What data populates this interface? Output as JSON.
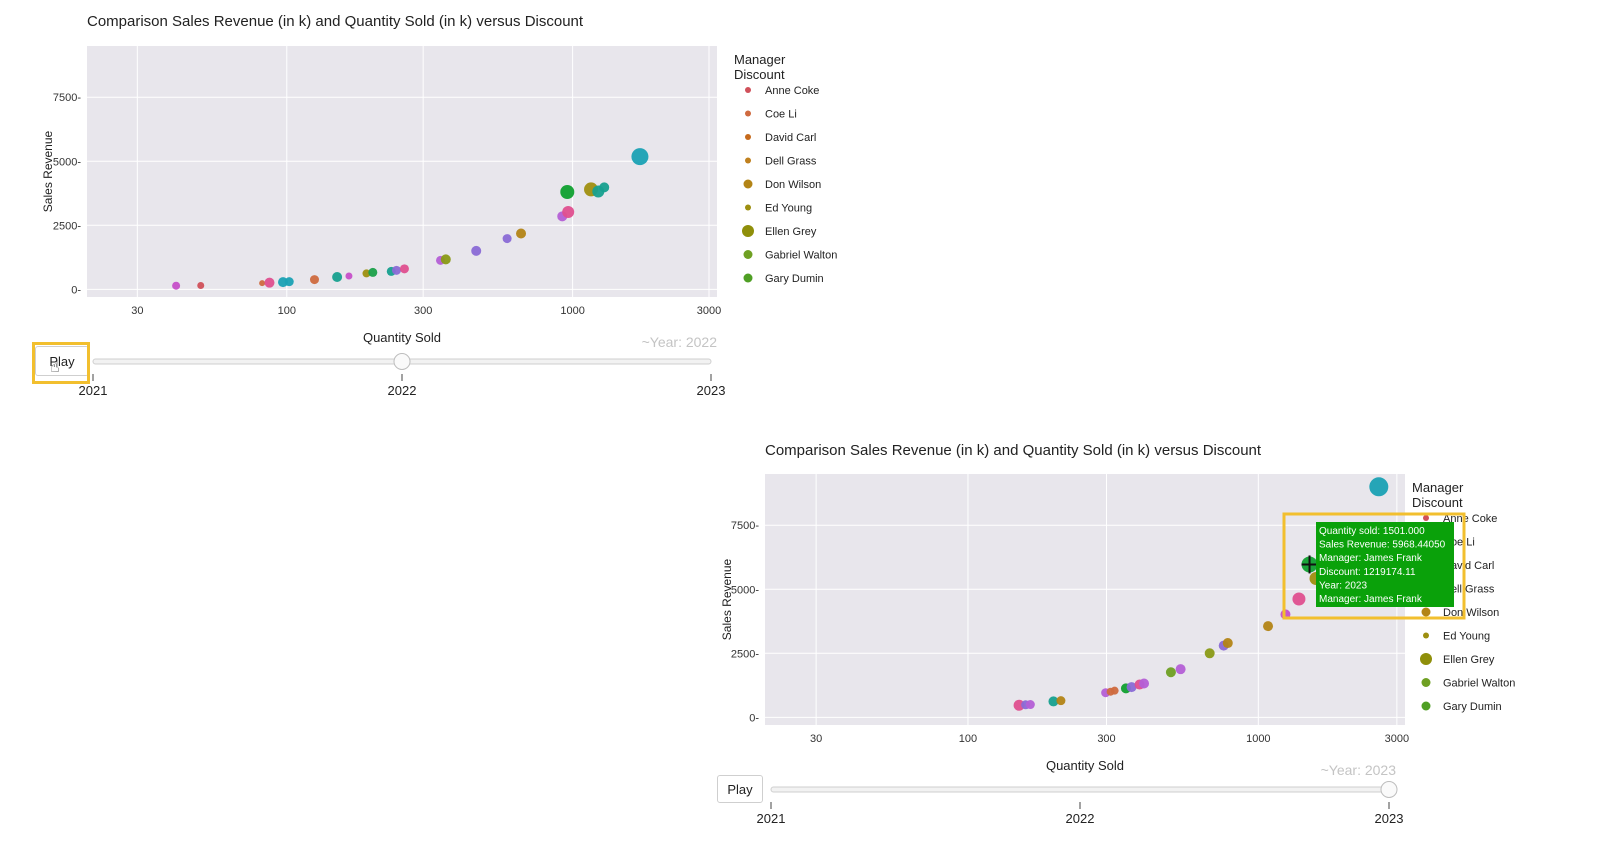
{
  "chart_data": [
    {
      "type": "scatter",
      "title": "Comparison Sales Revenue (in k) and Quantity Sold (in k) versus Discount",
      "xlabel": "Quantity Sold",
      "ylabel": "Sales Revenue",
      "x_scale": "log",
      "xlim": [
        20,
        3200
      ],
      "ylim": [
        -300,
        9500
      ],
      "x_ticks": [
        "30",
        "100",
        "300",
        "1000",
        "3000"
      ],
      "x_tick_values": [
        30,
        100,
        300,
        1000,
        3000
      ],
      "y_ticks": [
        "0",
        "2500",
        "5000",
        "7500"
      ],
      "y_tick_values": [
        0,
        2500,
        5000,
        7500
      ],
      "grid": true,
      "legend_title": "Manager\nDiscount",
      "legend_placement": "right",
      "legend": [
        {
          "name": "Anne Coke",
          "color": "#d0505a",
          "size": "small"
        },
        {
          "name": "Coe Li",
          "color": "#cf6a3f",
          "size": "small"
        },
        {
          "name": "David Carl",
          "color": "#c66a1c",
          "size": "small"
        },
        {
          "name": "Dell Grass",
          "color": "#c0801e",
          "size": "small"
        },
        {
          "name": "Don Wilson",
          "color": "#b38416",
          "size": "medium"
        },
        {
          "name": "Ed Young",
          "color": "#9d8f10",
          "size": "small"
        },
        {
          "name": "Ellen Grey",
          "color": "#8f8f0a",
          "size": "large"
        },
        {
          "name": "Gabriel Walton",
          "color": "#6fa023",
          "size": "medium"
        },
        {
          "name": "Gary Dumin",
          "color": "#4f9f24",
          "size": "medium"
        }
      ],
      "points": [
        {
          "x": 41,
          "y": 140,
          "color": "#c64fc9",
          "r": 4
        },
        {
          "x": 50,
          "y": 150,
          "color": "#d0505a",
          "r": 3.5
        },
        {
          "x": 82,
          "y": 240,
          "color": "#cf6a3f",
          "r": 3
        },
        {
          "x": 87,
          "y": 260,
          "color": "#df4f8f",
          "r": 5
        },
        {
          "x": 97,
          "y": 280,
          "color": "#1aa1b4",
          "r": 5
        },
        {
          "x": 102,
          "y": 300,
          "color": "#1aa1b4",
          "r": 4.5
        },
        {
          "x": 125,
          "y": 380,
          "color": "#cf6a3f",
          "r": 4.5
        },
        {
          "x": 150,
          "y": 480,
          "color": "#17a08f",
          "r": 5
        },
        {
          "x": 165,
          "y": 520,
          "color": "#c64fc9",
          "r": 3.5
        },
        {
          "x": 190,
          "y": 620,
          "color": "#9d8f10",
          "r": 4
        },
        {
          "x": 200,
          "y": 660,
          "color": "#1ba04a",
          "r": 4.5
        },
        {
          "x": 232,
          "y": 700,
          "color": "#17a08f",
          "r": 4.5
        },
        {
          "x": 242,
          "y": 740,
          "color": "#8a6ad6",
          "r": 4.5
        },
        {
          "x": 258,
          "y": 800,
          "color": "#df4f8f",
          "r": 4.5
        },
        {
          "x": 345,
          "y": 1130,
          "color": "#b45fd6",
          "r": 4.5
        },
        {
          "x": 360,
          "y": 1170,
          "color": "#8a9a16",
          "r": 5
        },
        {
          "x": 460,
          "y": 1500,
          "color": "#8a6ad6",
          "r": 5
        },
        {
          "x": 590,
          "y": 1980,
          "color": "#8a6ad6",
          "r": 4.5
        },
        {
          "x": 660,
          "y": 2180,
          "color": "#b38416",
          "r": 5
        },
        {
          "x": 920,
          "y": 2850,
          "color": "#b45fd6",
          "r": 5
        },
        {
          "x": 965,
          "y": 3020,
          "color": "#df4f8f",
          "r": 6
        },
        {
          "x": 958,
          "y": 3800,
          "color": "#10a030",
          "r": 7
        },
        {
          "x": 1160,
          "y": 3900,
          "color": "#a08f10",
          "r": 7
        },
        {
          "x": 1230,
          "y": 3820,
          "color": "#17a08f",
          "r": 6
        },
        {
          "x": 1290,
          "y": 3980,
          "color": "#17a08f",
          "r": 5
        },
        {
          "x": 1720,
          "y": 5180,
          "color": "#1aa1b4",
          "r": 8.5
        }
      ],
      "slider": {
        "labels": [
          "2021",
          "2022",
          "2023"
        ],
        "current_label": "~Year: 2022",
        "position": 0.5
      },
      "play_label": "Play"
    },
    {
      "type": "scatter",
      "title": "Comparison Sales Revenue (in k) and Quantity Sold (in k) versus Discount",
      "xlabel": "Quantity Sold",
      "ylabel": "Sales Revenue",
      "x_scale": "log",
      "xlim": [
        20,
        3200
      ],
      "ylim": [
        -300,
        9500
      ],
      "x_ticks": [
        "30",
        "100",
        "300",
        "1000",
        "3000"
      ],
      "x_tick_values": [
        30,
        100,
        300,
        1000,
        3000
      ],
      "y_ticks": [
        "0",
        "2500",
        "5000",
        "7500"
      ],
      "y_tick_values": [
        0,
        2500,
        5000,
        7500
      ],
      "grid": true,
      "legend_title": "Manager\nDiscount",
      "legend_placement": "right",
      "legend": [
        {
          "name": "Anne Coke",
          "color": "#d0505a",
          "size": "small"
        },
        {
          "name": "Coe Li",
          "color": "#cf6a3f",
          "size": "small"
        },
        {
          "name": "David Carl",
          "color": "#c66a1c",
          "size": "small"
        },
        {
          "name": "Dell Grass",
          "color": "#c0801e",
          "size": "small"
        },
        {
          "name": "Don Wilson",
          "color": "#b38416",
          "size": "medium"
        },
        {
          "name": "Ed Young",
          "color": "#9d8f10",
          "size": "small"
        },
        {
          "name": "Ellen Grey",
          "color": "#8f8f0a",
          "size": "large"
        },
        {
          "name": "Gabriel Walton",
          "color": "#6fa023",
          "size": "medium"
        },
        {
          "name": "Gary Dumin",
          "color": "#4f9f24",
          "size": "medium"
        }
      ],
      "points": [
        {
          "x": 150,
          "y": 470,
          "color": "#df4f8f",
          "r": 5.5
        },
        {
          "x": 158,
          "y": 490,
          "color": "#8a6ad6",
          "r": 4.5
        },
        {
          "x": 164,
          "y": 500,
          "color": "#b45fd6",
          "r": 4.5
        },
        {
          "x": 197,
          "y": 620,
          "color": "#17a08f",
          "r": 5
        },
        {
          "x": 209,
          "y": 650,
          "color": "#b38416",
          "r": 4.5
        },
        {
          "x": 298,
          "y": 960,
          "color": "#b45fd6",
          "r": 4.5
        },
        {
          "x": 310,
          "y": 1000,
          "color": "#cf6a3f",
          "r": 4
        },
        {
          "x": 320,
          "y": 1040,
          "color": "#cf6a3f",
          "r": 4
        },
        {
          "x": 350,
          "y": 1130,
          "color": "#10a030",
          "r": 5
        },
        {
          "x": 366,
          "y": 1180,
          "color": "#8a6ad6",
          "r": 5
        },
        {
          "x": 390,
          "y": 1280,
          "color": "#df4f8f",
          "r": 5
        },
        {
          "x": 404,
          "y": 1320,
          "color": "#b45fd6",
          "r": 5
        },
        {
          "x": 500,
          "y": 1760,
          "color": "#6f9f23",
          "r": 5
        },
        {
          "x": 540,
          "y": 1880,
          "color": "#b45fd6",
          "r": 5
        },
        {
          "x": 680,
          "y": 2500,
          "color": "#8a9a16",
          "r": 5
        },
        {
          "x": 760,
          "y": 2800,
          "color": "#8a6ad6",
          "r": 5
        },
        {
          "x": 785,
          "y": 2900,
          "color": "#b38416",
          "r": 5
        },
        {
          "x": 1080,
          "y": 3560,
          "color": "#b38416",
          "r": 5
        },
        {
          "x": 1240,
          "y": 4020,
          "color": "#c64fc9",
          "r": 5
        },
        {
          "x": 1380,
          "y": 4620,
          "color": "#df4f8f",
          "r": 6.5
        },
        {
          "x": 1501,
          "y": 5968.44,
          "color": "#10a030",
          "r": 8
        },
        {
          "x": 1580,
          "y": 5420,
          "color": "#a08f10",
          "r": 6.5
        },
        {
          "x": 2600,
          "y": 9000,
          "color": "#1aa1b4",
          "r": 9.5
        }
      ],
      "tooltip": {
        "lines": [
          "Quantity sold: 1501.000",
          "Sales Revenue: 5968.44050",
          "Manager: James Frank",
          "Discount: 1219174.11",
          "Year: 2023",
          "Manager: James Frank"
        ],
        "color": "#0aa10a"
      },
      "slider": {
        "labels": [
          "2021",
          "2022",
          "2023"
        ],
        "current_label": "~Year: 2023",
        "position": 1.0
      },
      "play_label": "Play"
    }
  ],
  "highlight_color": "#f2bf2e"
}
